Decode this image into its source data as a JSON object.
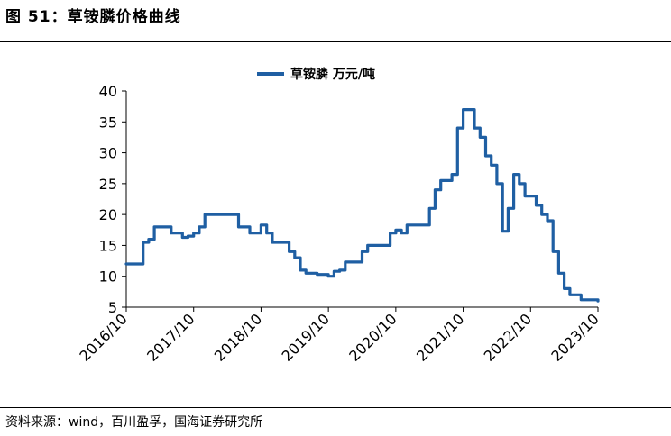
{
  "figure": {
    "title": "图 51：草铵膦价格曲线",
    "source": "资料来源：wind，百川盈孚，国海证券研究所"
  },
  "chart_data": {
    "type": "line",
    "title": "",
    "xlabel": "",
    "ylabel": "",
    "ylim": [
      5,
      40
    ],
    "yticks": [
      5,
      10,
      15,
      20,
      25,
      30,
      35,
      40
    ],
    "x_tick_labels": [
      "2016/10",
      "2017/10",
      "2018/10",
      "2019/10",
      "2020/10",
      "2021/10",
      "2022/10",
      "2023/10"
    ],
    "x_range": [
      "2016/10",
      "2023/10"
    ],
    "grid": false,
    "legend_position": "top-center",
    "series": [
      {
        "name": "草铵膦 万元/吨",
        "color": "#1f5fa3",
        "points": [
          [
            "2016-10",
            12.0
          ],
          [
            "2016-12",
            12.0
          ],
          [
            "2017-01",
            15.5
          ],
          [
            "2017-02",
            16.0
          ],
          [
            "2017-03",
            18.0
          ],
          [
            "2017-05",
            18.0
          ],
          [
            "2017-06",
            17.0
          ],
          [
            "2017-08",
            16.3
          ],
          [
            "2017-09",
            16.5
          ],
          [
            "2017-10",
            17.0
          ],
          [
            "2017-11",
            18.0
          ],
          [
            "2017-12",
            20.0
          ],
          [
            "2018-02",
            20.0
          ],
          [
            "2018-04",
            20.0
          ],
          [
            "2018-06",
            18.0
          ],
          [
            "2018-08",
            17.0
          ],
          [
            "2018-09",
            17.0
          ],
          [
            "2018-10",
            18.3
          ],
          [
            "2018-11",
            17.0
          ],
          [
            "2018-12",
            15.5
          ],
          [
            "2019-02",
            15.5
          ],
          [
            "2019-03",
            14.0
          ],
          [
            "2019-04",
            13.0
          ],
          [
            "2019-05",
            11.0
          ],
          [
            "2019-06",
            10.5
          ],
          [
            "2019-08",
            10.3
          ],
          [
            "2019-10",
            10.0
          ],
          [
            "2019-11",
            10.8
          ],
          [
            "2019-12",
            11.0
          ],
          [
            "2020-01",
            12.3
          ],
          [
            "2020-03",
            12.3
          ],
          [
            "2020-04",
            14.0
          ],
          [
            "2020-05",
            15.0
          ],
          [
            "2020-08",
            15.0
          ],
          [
            "2020-09",
            17.0
          ],
          [
            "2020-10",
            17.5
          ],
          [
            "2020-11",
            17.0
          ],
          [
            "2020-12",
            18.3
          ],
          [
            "2021-01",
            18.3
          ],
          [
            "2021-03",
            18.3
          ],
          [
            "2021-04",
            21.0
          ],
          [
            "2021-05",
            24.0
          ],
          [
            "2021-06",
            25.5
          ],
          [
            "2021-08",
            26.5
          ],
          [
            "2021-09",
            34.0
          ],
          [
            "2021-10",
            37.0
          ],
          [
            "2021-11",
            37.0
          ],
          [
            "2021-12",
            34.0
          ],
          [
            "2022-01",
            32.5
          ],
          [
            "2022-02",
            29.5
          ],
          [
            "2022-03",
            28.0
          ],
          [
            "2022-04",
            25.0
          ],
          [
            "2022-05",
            17.3
          ],
          [
            "2022-06",
            21.0
          ],
          [
            "2022-07",
            26.5
          ],
          [
            "2022-08",
            25.0
          ],
          [
            "2022-09",
            23.0
          ],
          [
            "2022-11",
            21.5
          ],
          [
            "2022-12",
            20.0
          ],
          [
            "2023-01",
            19.0
          ],
          [
            "2023-02",
            14.0
          ],
          [
            "2023-03",
            10.5
          ],
          [
            "2023-04",
            8.0
          ],
          [
            "2023-05",
            7.0
          ],
          [
            "2023-07",
            6.2
          ],
          [
            "2023-10",
            6.0
          ]
        ]
      }
    ]
  }
}
